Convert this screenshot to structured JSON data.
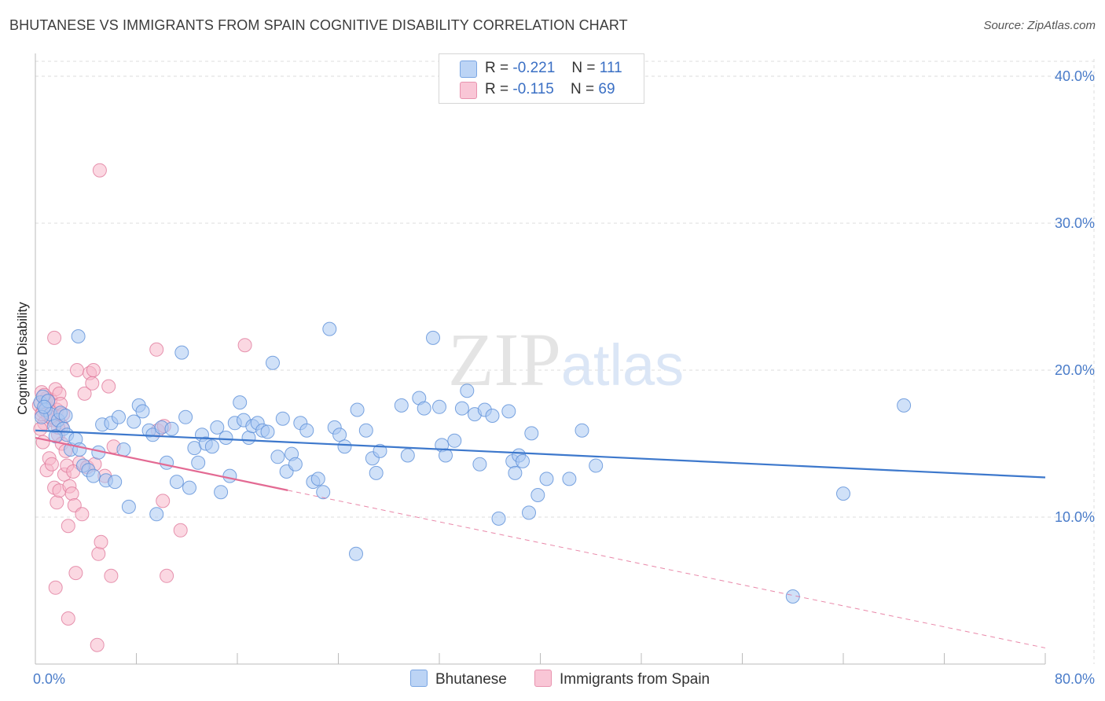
{
  "title": "BHUTANESE VS IMMIGRANTS FROM SPAIN COGNITIVE DISABILITY CORRELATION CHART",
  "source": "Source: ZipAtlas.com",
  "watermark": "ZIPatlas",
  "legend": {
    "rows": [
      {
        "r_label": "R =",
        "r_value": "-0.221",
        "n_label": "N =",
        "n_value": "111"
      },
      {
        "r_label": "R =",
        "r_value": "-0.115",
        "n_label": "N =",
        "n_value": "69"
      }
    ]
  },
  "colors": {
    "blue_fill": "#a9c8f2",
    "blue_stroke": "#5b8fd8",
    "blue_line": "#3d78cc",
    "pink_fill": "#f7b8cb",
    "pink_stroke": "#e07a9c",
    "pink_line": "#e36a93",
    "axis_label": "#4a7cc9"
  },
  "chart_data": {
    "type": "scatter",
    "title": "BHUTANESE VS IMMIGRANTS FROM SPAIN COGNITIVE DISABILITY CORRELATION CHART",
    "xlabel": "",
    "ylabel": "Cognitive Disability",
    "xlim": [
      0,
      80
    ],
    "ylim": [
      0,
      42
    ],
    "x_tick_labels": [
      "0.0%",
      "80.0%"
    ],
    "y_ticks": [
      10,
      20,
      30,
      40
    ],
    "y_tick_labels": [
      "10.0%",
      "20.0%",
      "30.0%",
      "40.0%"
    ],
    "series": [
      {
        "name": "Bhutanese",
        "r": -0.221,
        "n": 111,
        "trend": {
          "x": [
            0,
            80
          ],
          "y": [
            15.9,
            12.7
          ],
          "dashed_from": null
        },
        "points": [
          [
            0.4,
            17.8
          ],
          [
            0.6,
            18.2
          ],
          [
            0.8,
            17.3
          ],
          [
            1.0,
            17.9
          ],
          [
            1.2,
            17.0
          ],
          [
            0.5,
            16.8
          ],
          [
            0.7,
            17.5
          ],
          [
            1.5,
            16.2
          ],
          [
            1.8,
            16.6
          ],
          [
            2.0,
            17.1
          ],
          [
            2.2,
            16.0
          ],
          [
            2.5,
            15.6
          ],
          [
            2.8,
            14.6
          ],
          [
            3.2,
            15.3
          ],
          [
            3.5,
            14.6
          ],
          [
            3.8,
            13.5
          ],
          [
            4.2,
            13.2
          ],
          [
            4.6,
            12.8
          ],
          [
            5.0,
            14.4
          ],
          [
            5.3,
            16.3
          ],
          [
            5.6,
            12.5
          ],
          [
            6.0,
            16.4
          ],
          [
            6.3,
            12.4
          ],
          [
            6.6,
            16.8
          ],
          [
            7.0,
            14.6
          ],
          [
            7.4,
            10.7
          ],
          [
            7.8,
            16.5
          ],
          [
            8.2,
            17.6
          ],
          [
            8.5,
            17.2
          ],
          [
            9.0,
            15.9
          ],
          [
            9.3,
            15.6
          ],
          [
            9.6,
            10.2
          ],
          [
            10.0,
            16.1
          ],
          [
            10.4,
            13.7
          ],
          [
            10.8,
            16.0
          ],
          [
            11.2,
            12.4
          ],
          [
            11.6,
            21.2
          ],
          [
            11.9,
            16.8
          ],
          [
            12.2,
            12.0
          ],
          [
            12.6,
            14.7
          ],
          [
            12.9,
            13.7
          ],
          [
            13.2,
            15.6
          ],
          [
            13.5,
            15.0
          ],
          [
            14.0,
            14.8
          ],
          [
            14.4,
            16.1
          ],
          [
            14.7,
            11.7
          ],
          [
            15.1,
            15.4
          ],
          [
            15.4,
            12.8
          ],
          [
            15.8,
            16.4
          ],
          [
            16.2,
            17.8
          ],
          [
            16.5,
            16.6
          ],
          [
            16.9,
            15.4
          ],
          [
            17.2,
            16.2
          ],
          [
            17.6,
            16.4
          ],
          [
            18.0,
            15.9
          ],
          [
            18.4,
            15.8
          ],
          [
            18.8,
            20.5
          ],
          [
            19.2,
            14.1
          ],
          [
            19.6,
            16.7
          ],
          [
            19.9,
            13.1
          ],
          [
            20.3,
            14.3
          ],
          [
            20.6,
            13.6
          ],
          [
            21.0,
            16.4
          ],
          [
            21.5,
            15.9
          ],
          [
            22.0,
            12.4
          ],
          [
            22.4,
            12.6
          ],
          [
            22.8,
            11.7
          ],
          [
            23.3,
            22.8
          ],
          [
            23.7,
            16.1
          ],
          [
            24.1,
            15.6
          ],
          [
            24.5,
            14.8
          ],
          [
            25.5,
            17.3
          ],
          [
            26.2,
            15.9
          ],
          [
            26.7,
            14.0
          ],
          [
            27.0,
            13.0
          ],
          [
            27.3,
            14.5
          ],
          [
            29.0,
            17.6
          ],
          [
            29.5,
            14.2
          ],
          [
            30.4,
            18.1
          ],
          [
            30.8,
            17.4
          ],
          [
            31.5,
            22.2
          ],
          [
            32.0,
            17.5
          ],
          [
            32.2,
            14.9
          ],
          [
            32.5,
            14.2
          ],
          [
            33.2,
            15.2
          ],
          [
            33.8,
            17.4
          ],
          [
            34.2,
            18.6
          ],
          [
            34.8,
            17.0
          ],
          [
            35.2,
            13.6
          ],
          [
            35.6,
            17.3
          ],
          [
            36.2,
            16.9
          ],
          [
            36.7,
            9.9
          ],
          [
            37.5,
            17.2
          ],
          [
            37.8,
            13.8
          ],
          [
            38.0,
            13.0
          ],
          [
            38.3,
            14.2
          ],
          [
            38.6,
            13.8
          ],
          [
            39.1,
            10.3
          ],
          [
            39.3,
            15.7
          ],
          [
            39.8,
            11.5
          ],
          [
            40.5,
            12.6
          ],
          [
            42.3,
            12.6
          ],
          [
            43.3,
            15.9
          ],
          [
            44.4,
            13.5
          ],
          [
            25.4,
            7.5
          ],
          [
            60.0,
            4.6
          ],
          [
            64.0,
            11.6
          ],
          [
            68.8,
            17.6
          ],
          [
            3.4,
            22.3
          ],
          [
            1.6,
            15.5
          ],
          [
            2.4,
            16.9
          ]
        ]
      },
      {
        "name": "Immigrants from Spain",
        "r": -0.115,
        "n": 69,
        "trend": {
          "x": [
            0,
            80
          ],
          "y": [
            15.4,
            1.1
          ],
          "solid_until_x": 20
        },
        "points": [
          [
            0.3,
            17.6
          ],
          [
            0.5,
            18.5
          ],
          [
            0.6,
            17.2
          ],
          [
            0.7,
            16.4
          ],
          [
            0.8,
            17.9
          ],
          [
            0.9,
            18.1
          ],
          [
            1.0,
            16.9
          ],
          [
            1.1,
            17.4
          ],
          [
            1.2,
            18.0
          ],
          [
            1.3,
            17.1
          ],
          [
            1.4,
            16.6
          ],
          [
            1.5,
            22.2
          ],
          [
            1.6,
            18.7
          ],
          [
            1.7,
            17.3
          ],
          [
            1.8,
            15.6
          ],
          [
            1.9,
            18.4
          ],
          [
            2.0,
            17.7
          ],
          [
            2.1,
            16.2
          ],
          [
            2.2,
            17.0
          ],
          [
            0.4,
            16.0
          ],
          [
            0.6,
            15.1
          ],
          [
            0.9,
            13.2
          ],
          [
            1.1,
            14.0
          ],
          [
            1.3,
            13.6
          ],
          [
            1.5,
            12.0
          ],
          [
            1.7,
            11.0
          ],
          [
            1.9,
            11.8
          ],
          [
            2.1,
            15.0
          ],
          [
            2.3,
            12.9
          ],
          [
            2.5,
            13.5
          ],
          [
            2.7,
            12.1
          ],
          [
            2.9,
            11.6
          ],
          [
            3.1,
            10.8
          ],
          [
            3.3,
            20.0
          ],
          [
            3.5,
            13.7
          ],
          [
            3.7,
            10.2
          ],
          [
            3.9,
            18.4
          ],
          [
            4.1,
            13.4
          ],
          [
            4.3,
            19.8
          ],
          [
            4.5,
            19.1
          ],
          [
            4.7,
            13.6
          ],
          [
            5.0,
            7.5
          ],
          [
            5.2,
            8.3
          ],
          [
            5.5,
            12.8
          ],
          [
            5.8,
            18.9
          ],
          [
            6.0,
            6.0
          ],
          [
            6.2,
            14.8
          ],
          [
            1.6,
            5.2
          ],
          [
            2.6,
            9.4
          ],
          [
            3.2,
            6.2
          ],
          [
            2.6,
            3.1
          ],
          [
            5.1,
            33.6
          ],
          [
            4.9,
            1.3
          ],
          [
            9.6,
            21.4
          ],
          [
            10.1,
            11.1
          ],
          [
            10.4,
            6.0
          ],
          [
            11.5,
            9.1
          ],
          [
            16.6,
            21.7
          ],
          [
            9.7,
            15.9
          ],
          [
            10.2,
            16.2
          ],
          [
            0.8,
            17.4
          ],
          [
            1.0,
            17.9
          ],
          [
            1.2,
            16.8
          ],
          [
            0.5,
            17.0
          ],
          [
            0.7,
            18.3
          ],
          [
            2.4,
            14.5
          ],
          [
            4.6,
            20.0
          ],
          [
            1.8,
            16.1
          ],
          [
            3.0,
            13.1
          ]
        ]
      }
    ]
  },
  "bottom_legend": [
    "Bhutanese",
    "Immigrants from Spain"
  ]
}
